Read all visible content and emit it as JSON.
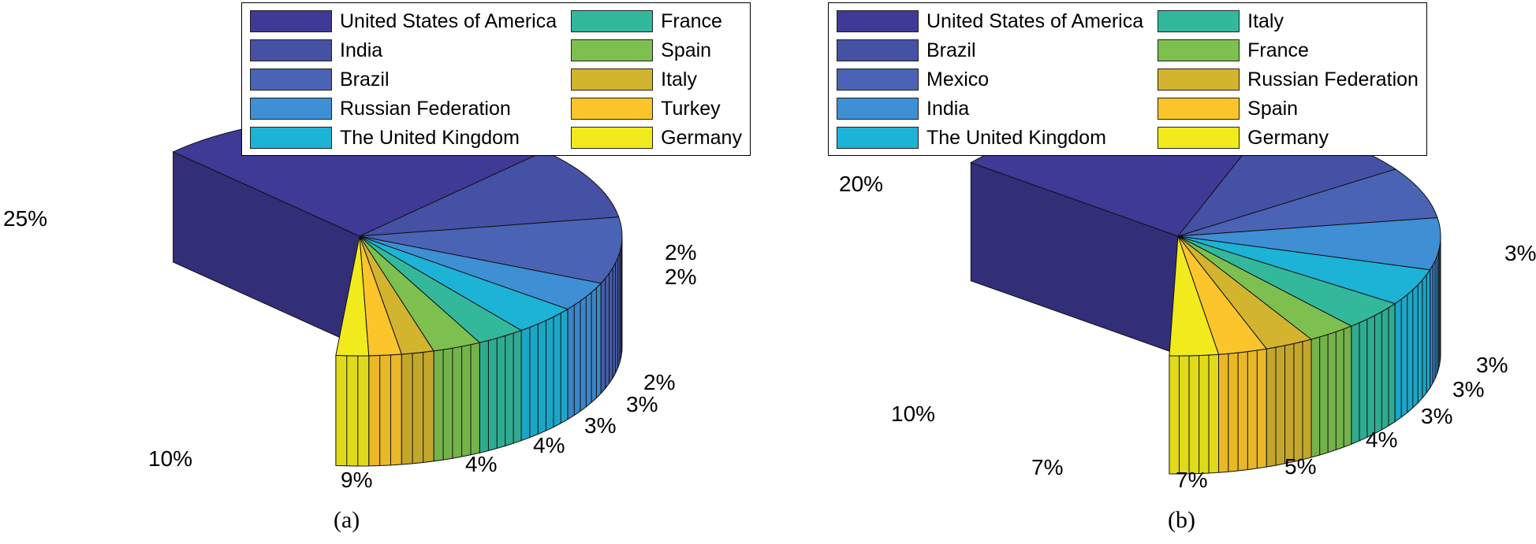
{
  "chart_data": [
    {
      "type": "pie",
      "variant": "3d-pie",
      "caption": "(a)",
      "categories": [
        "United States of America",
        "India",
        "Brazil",
        "Russian Federation",
        "The United Kingdom",
        "France",
        "Spain",
        "Italy",
        "Turkey",
        "Germany"
      ],
      "values": [
        25,
        10,
        9,
        4,
        4,
        3,
        3,
        2,
        2,
        2
      ],
      "labels": [
        "25%",
        "10%",
        "9%",
        "4%",
        "4%",
        "3%",
        "3%",
        "2%",
        "2%",
        "2%"
      ],
      "colors": [
        "#3f3a96",
        "#4551a4",
        "#4a63b4",
        "#3e8fd4",
        "#1db3d6",
        "#33b89c",
        "#7dc04f",
        "#d2b42f",
        "#fbc52b",
        "#f1ea1c"
      ],
      "legend_position": "top"
    },
    {
      "type": "pie",
      "variant": "3d-pie",
      "caption": "(b)",
      "categories": [
        "United States of America",
        "Brazil",
        "Mexico",
        "India",
        "The United Kingdom",
        "Italy",
        "France",
        "Russian Federation",
        "Spain",
        "Germany"
      ],
      "values": [
        20,
        10,
        7,
        7,
        5,
        4,
        3,
        3,
        3,
        3
      ],
      "labels": [
        "20%",
        "10%",
        "7%",
        "7%",
        "5%",
        "4%",
        "3%",
        "3%",
        "3%",
        "3%"
      ],
      "colors": [
        "#3f3a96",
        "#4551a4",
        "#4a63b4",
        "#3e8fd4",
        "#1db3d6",
        "#33b89c",
        "#7dc04f",
        "#d2b42f",
        "#fbc52b",
        "#f1ea1c"
      ],
      "legend_position": "top"
    }
  ]
}
